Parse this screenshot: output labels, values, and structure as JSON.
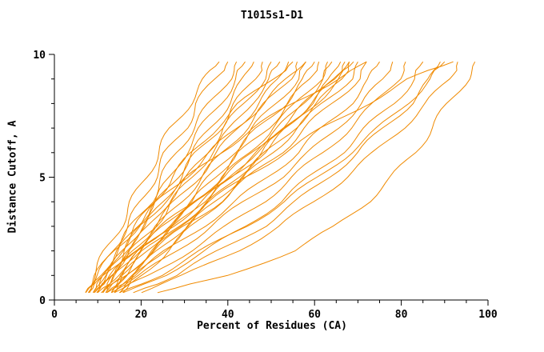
{
  "chart_data": {
    "type": "line",
    "title": "T1015s1-D1",
    "xlabel": "Percent of Residues (CA)",
    "ylabel": "Distance Cutoff, A",
    "xlim": [
      0,
      100
    ],
    "ylim": [
      0,
      10
    ],
    "xticks": [
      0,
      20,
      40,
      60,
      80,
      100
    ],
    "yticks": [
      0,
      5,
      10
    ],
    "x_minor_step": 5,
    "y_minor_step": 1,
    "line_color": "#f08a00",
    "axis_color": "#000000",
    "legend": "none",
    "grid": false,
    "y_levels": [
      0.3,
      1,
      2,
      3,
      4,
      5,
      6,
      7,
      8,
      9,
      9.7
    ],
    "series_x": [
      [
        7,
        9,
        12,
        15,
        18,
        21,
        24,
        27,
        31,
        35,
        38
      ],
      [
        8,
        10,
        13,
        17,
        20,
        23,
        26,
        30,
        33,
        37,
        40
      ],
      [
        8,
        11,
        14,
        18,
        22,
        25,
        28,
        32,
        36,
        40,
        42
      ],
      [
        9,
        11,
        15,
        19,
        23,
        27,
        30,
        34,
        38,
        42,
        44
      ],
      [
        9,
        12,
        16,
        20,
        24,
        28,
        32,
        36,
        40,
        44,
        46
      ],
      [
        10,
        12,
        16,
        21,
        25,
        29,
        33,
        38,
        42,
        46,
        48
      ],
      [
        10,
        13,
        17,
        22,
        26,
        31,
        35,
        39,
        44,
        48,
        50
      ],
      [
        11,
        13,
        18,
        23,
        27,
        32,
        36,
        41,
        45,
        50,
        52
      ],
      [
        11,
        14,
        18,
        23,
        28,
        33,
        38,
        42,
        47,
        52,
        54
      ],
      [
        12,
        14,
        19,
        24,
        29,
        34,
        39,
        44,
        49,
        54,
        56
      ],
      [
        12,
        15,
        20,
        25,
        31,
        36,
        41,
        46,
        51,
        56,
        58
      ],
      [
        13,
        15,
        20,
        26,
        32,
        37,
        42,
        47,
        53,
        58,
        60
      ],
      [
        13,
        16,
        21,
        27,
        33,
        38,
        43,
        49,
        54,
        59,
        61
      ],
      [
        14,
        17,
        22,
        28,
        34,
        39,
        45,
        50,
        56,
        61,
        63
      ],
      [
        14,
        17,
        23,
        29,
        35,
        41,
        46,
        52,
        57,
        62,
        64
      ],
      [
        15,
        18,
        24,
        30,
        36,
        42,
        48,
        53,
        59,
        64,
        66
      ],
      [
        15,
        19,
        25,
        31,
        37,
        43,
        49,
        55,
        61,
        66,
        68
      ],
      [
        16,
        20,
        26,
        32,
        38,
        44,
        50,
        56,
        62,
        68,
        70
      ],
      [
        10,
        14,
        20,
        27,
        34,
        41,
        48,
        54,
        60,
        66,
        69
      ],
      [
        9,
        13,
        19,
        26,
        33,
        40,
        47,
        53,
        59,
        65,
        68
      ],
      [
        8,
        12,
        18,
        25,
        32,
        39,
        46,
        52,
        58,
        64,
        67
      ],
      [
        11,
        16,
        23,
        30,
        38,
        45,
        52,
        58,
        64,
        70,
        72
      ],
      [
        12,
        18,
        26,
        34,
        42,
        49,
        56,
        62,
        68,
        73,
        75
      ],
      [
        13,
        20,
        28,
        36,
        44,
        52,
        59,
        65,
        71,
        76,
        78
      ],
      [
        14,
        22,
        31,
        40,
        48,
        55,
        62,
        68,
        74,
        79,
        81
      ],
      [
        16,
        25,
        35,
        44,
        52,
        59,
        66,
        72,
        78,
        83,
        85
      ],
      [
        18,
        28,
        38,
        48,
        56,
        63,
        70,
        76,
        82,
        87,
        89
      ],
      [
        20,
        30,
        42,
        52,
        60,
        67,
        74,
        80,
        86,
        91,
        93
      ],
      [
        24,
        40,
        55,
        65,
        72,
        78,
        83,
        87,
        91,
        95,
        97
      ],
      [
        15,
        24,
        34,
        44,
        53,
        61,
        68,
        75,
        81,
        87,
        90
      ],
      [
        7,
        10,
        14,
        19,
        24,
        30,
        36,
        42,
        48,
        54,
        58
      ],
      [
        9,
        12,
        15,
        19,
        23,
        27,
        32,
        37,
        43,
        50,
        55
      ],
      [
        10,
        13,
        16,
        20,
        25,
        31,
        38,
        46,
        55,
        65,
        72
      ],
      [
        12,
        16,
        21,
        28,
        36,
        44,
        53,
        62,
        72,
        82,
        92
      ]
    ]
  }
}
